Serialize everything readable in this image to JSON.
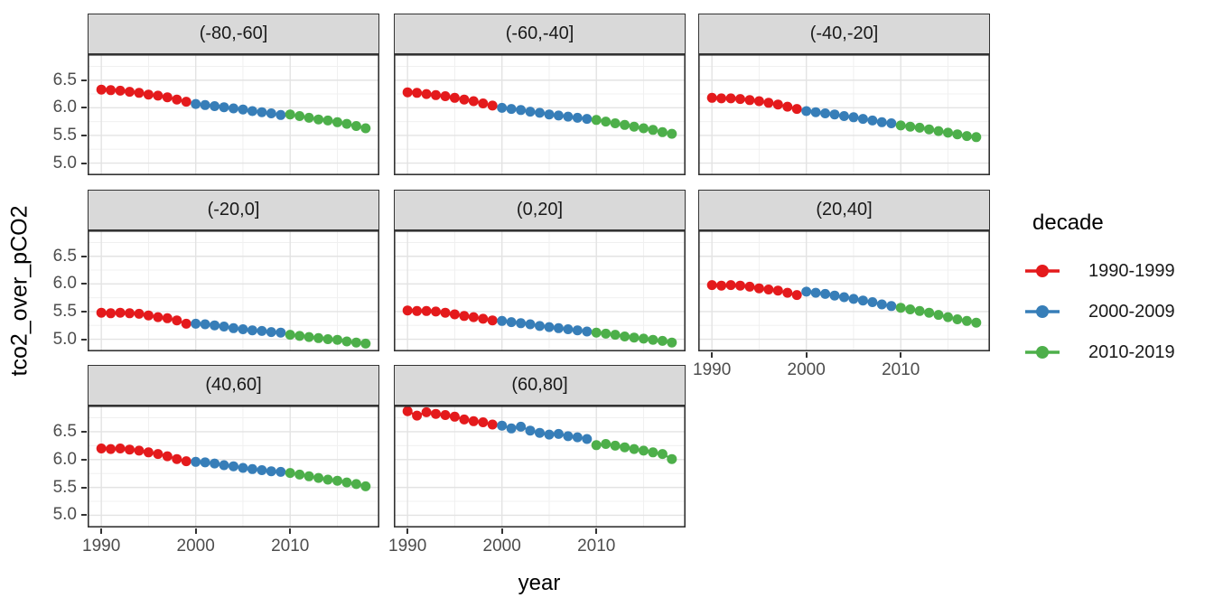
{
  "figure": {
    "x_axis_title": "year",
    "y_axis_title": "tco2_over_pCO2",
    "x_tick_labels": [
      "1990",
      "2000",
      "2010"
    ],
    "y_tick_labels": [
      "6.5",
      "6.0",
      "5.5",
      "5.0"
    ]
  },
  "legend": {
    "title": "decade"
  },
  "chart_data": {
    "type": "scatter",
    "title": "",
    "xlabel": "year",
    "ylabel": "tco2_over_pCO2",
    "legend_title": "decade",
    "legend_position": "right",
    "grid": "on",
    "facet_variable": "latitude band",
    "xlim": [
      1988.55,
      2019.45
    ],
    "ylim": [
      4.78,
      6.97
    ],
    "x_ticks": [
      1990,
      2000,
      2010
    ],
    "x_minor_ticks": [
      1995,
      2005,
      2015
    ],
    "y_ticks": [
      6.5,
      6.0,
      5.5,
      5.0
    ],
    "y_minor_ticks": [
      6.75,
      6.25,
      5.75,
      5.25
    ],
    "x": [
      1990,
      1991,
      1992,
      1993,
      1994,
      1995,
      1996,
      1997,
      1998,
      1999,
      2000,
      2001,
      2002,
      2003,
      2004,
      2005,
      2006,
      2007,
      2008,
      2009,
      2010,
      2011,
      2012,
      2013,
      2014,
      2015,
      2016,
      2017,
      2018
    ],
    "decades": [
      {
        "label": "1990-1999",
        "start": 1990,
        "end": 1999,
        "color": "#E41A1C"
      },
      {
        "label": "2000-2009",
        "start": 2000,
        "end": 2009,
        "color": "#377EB8"
      },
      {
        "label": "2010-2019",
        "start": 2010,
        "end": 2019,
        "color": "#4DAF4A"
      }
    ],
    "facets": [
      {
        "label": "(-80,-60]",
        "values": [
          6.33,
          6.32,
          6.31,
          6.29,
          6.27,
          6.24,
          6.22,
          6.19,
          6.15,
          6.11,
          6.07,
          6.05,
          6.03,
          6.01,
          5.99,
          5.97,
          5.94,
          5.92,
          5.9,
          5.87,
          5.88,
          5.85,
          5.82,
          5.79,
          5.77,
          5.74,
          5.71,
          5.67,
          5.63
        ]
      },
      {
        "label": "(-60,-40]",
        "values": [
          6.28,
          6.27,
          6.25,
          6.23,
          6.21,
          6.18,
          6.15,
          6.12,
          6.08,
          6.04,
          6.0,
          5.98,
          5.96,
          5.93,
          5.91,
          5.88,
          5.86,
          5.84,
          5.82,
          5.8,
          5.78,
          5.75,
          5.72,
          5.69,
          5.66,
          5.63,
          5.6,
          5.56,
          5.53
        ]
      },
      {
        "label": "(-40,-20]",
        "values": [
          6.18,
          6.17,
          6.17,
          6.16,
          6.14,
          6.12,
          6.09,
          6.06,
          6.02,
          5.98,
          5.94,
          5.92,
          5.9,
          5.88,
          5.85,
          5.83,
          5.8,
          5.77,
          5.74,
          5.72,
          5.68,
          5.66,
          5.64,
          5.61,
          5.58,
          5.55,
          5.52,
          5.49,
          5.47
        ]
      },
      {
        "label": "(-20,0]",
        "values": [
          5.48,
          5.47,
          5.48,
          5.47,
          5.46,
          5.43,
          5.4,
          5.38,
          5.34,
          5.28,
          5.28,
          5.27,
          5.25,
          5.23,
          5.2,
          5.18,
          5.16,
          5.15,
          5.13,
          5.12,
          5.08,
          5.06,
          5.04,
          5.02,
          5.0,
          4.99,
          4.96,
          4.94,
          4.92
        ]
      },
      {
        "label": "(0,20]",
        "values": [
          5.52,
          5.51,
          5.51,
          5.5,
          5.48,
          5.45,
          5.42,
          5.4,
          5.37,
          5.34,
          5.33,
          5.31,
          5.29,
          5.27,
          5.24,
          5.22,
          5.2,
          5.18,
          5.16,
          5.14,
          5.12,
          5.1,
          5.08,
          5.05,
          5.03,
          5.01,
          4.99,
          4.97,
          4.94
        ]
      },
      {
        "label": "(20,40]",
        "values": [
          5.98,
          5.97,
          5.98,
          5.97,
          5.95,
          5.92,
          5.9,
          5.88,
          5.84,
          5.8,
          5.86,
          5.84,
          5.82,
          5.79,
          5.76,
          5.73,
          5.7,
          5.67,
          5.63,
          5.6,
          5.57,
          5.54,
          5.51,
          5.48,
          5.44,
          5.4,
          5.36,
          5.33,
          5.3
        ]
      },
      {
        "label": "(40,60]",
        "values": [
          6.2,
          6.19,
          6.2,
          6.18,
          6.16,
          6.13,
          6.1,
          6.06,
          6.01,
          5.97,
          5.96,
          5.95,
          5.93,
          5.9,
          5.88,
          5.85,
          5.83,
          5.81,
          5.79,
          5.78,
          5.76,
          5.73,
          5.7,
          5.67,
          5.64,
          5.62,
          5.59,
          5.56,
          5.52
        ]
      },
      {
        "label": "(60,80]",
        "values": [
          6.87,
          6.79,
          6.85,
          6.82,
          6.8,
          6.77,
          6.72,
          6.69,
          6.67,
          6.63,
          6.61,
          6.56,
          6.59,
          6.52,
          6.48,
          6.45,
          6.46,
          6.42,
          6.4,
          6.37,
          6.26,
          6.28,
          6.25,
          6.22,
          6.19,
          6.16,
          6.13,
          6.1,
          6.01
        ]
      }
    ],
    "style": {
      "grid_major_color": "#e3e3e3",
      "grid_minor_color": "#f0f0f0",
      "panel_border_color": "#333333",
      "strip_background": "#d9d9d9",
      "tick_label_color": "#4d4d4d",
      "point_radius": 5.5
    }
  }
}
